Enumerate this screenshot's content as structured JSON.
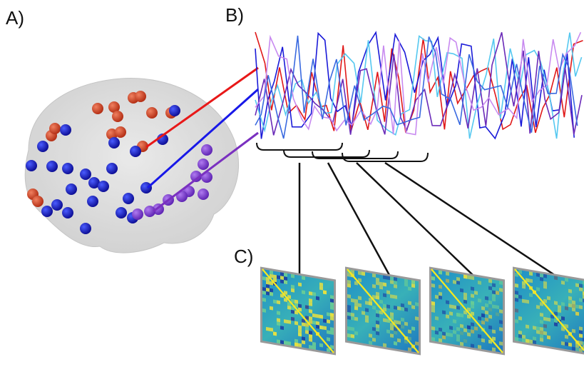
{
  "panels": [
    {
      "label": "A)"
    },
    {
      "label": "B)"
    },
    {
      "label": "C)"
    }
  ]
}
